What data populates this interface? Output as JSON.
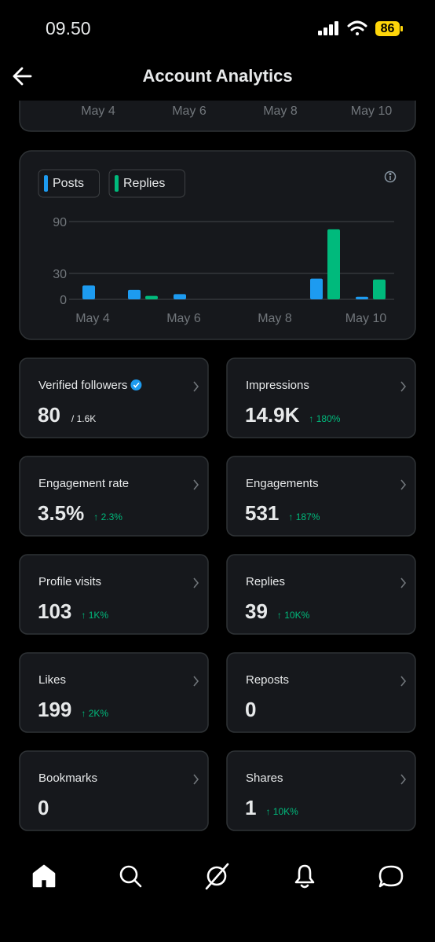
{
  "status_bar": {
    "time": "09.50",
    "battery": "86"
  },
  "header": {
    "title": "Account Analytics"
  },
  "top_card": {
    "axis_labels": [
      "May 4",
      "May 6",
      "May 8",
      "May 10"
    ]
  },
  "chart": {
    "type": "bar",
    "categories": [
      "May 4",
      null,
      "May 6",
      null,
      "May 8",
      null,
      "May 10"
    ],
    "series": [
      {
        "name": "Posts",
        "color": "#1d9bf0",
        "values": [
          16,
          11,
          6,
          0,
          0,
          24,
          3
        ]
      },
      {
        "name": "Replies",
        "color": "#00ba7c",
        "values": [
          0,
          4,
          0,
          0,
          0,
          81,
          23
        ]
      }
    ],
    "ylim": [
      0,
      90
    ],
    "yticks": [
      0,
      30,
      90
    ],
    "grid": true
  },
  "stats": [
    {
      "label": "Verified followers",
      "value": "80",
      "total": "/ 1.6K",
      "verified": true
    },
    {
      "label": "Impressions",
      "value": "14.9K",
      "change": "↑ 180%"
    },
    {
      "label": "Engagement rate",
      "value": "3.5%",
      "change": "↑ 2.3%"
    },
    {
      "label": "Engagements",
      "value": "531",
      "change": "↑ 187%"
    },
    {
      "label": "Profile visits",
      "value": "103",
      "change": "↑ 1K%"
    },
    {
      "label": "Replies",
      "value": "39",
      "change": "↑ 10K%"
    },
    {
      "label": "Likes",
      "value": "199",
      "change": "↑ 2K%"
    },
    {
      "label": "Reposts",
      "value": "0"
    },
    {
      "label": "Bookmarks",
      "value": "0"
    },
    {
      "label": "Shares",
      "value": "1",
      "change": "↑ 10K%"
    }
  ]
}
